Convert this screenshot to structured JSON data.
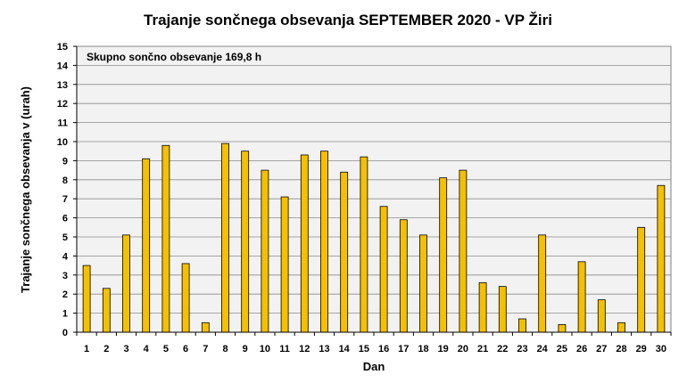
{
  "chart_data": {
    "type": "bar",
    "title": "Trajanje  sončnega  obsevanja  SEPTEMBER  2020 - VP Žiri",
    "xlabel": "Dan",
    "ylabel": "Trajanje  sončnega obsevanja  v (urah)",
    "annotation": "Skupno sončno obsevanje 169,8 h",
    "categories": [
      "1",
      "2",
      "3",
      "4",
      "5",
      "6",
      "7",
      "8",
      "9",
      "10",
      "11",
      "12",
      "13",
      "14",
      "15",
      "16",
      "17",
      "18",
      "19",
      "20",
      "21",
      "22",
      "23",
      "24",
      "25",
      "26",
      "27",
      "28",
      "29",
      "30"
    ],
    "values": [
      3.5,
      2.3,
      5.1,
      9.1,
      9.8,
      3.6,
      0.5,
      9.9,
      9.5,
      8.5,
      7.1,
      9.3,
      9.5,
      8.4,
      9.2,
      6.6,
      5.9,
      5.1,
      8.1,
      8.5,
      2.6,
      2.4,
      0.7,
      5.1,
      0.4,
      3.7,
      1.7,
      0.5,
      5.5,
      7.7
    ],
    "ylim": [
      0,
      15
    ],
    "yticks": [
      "0",
      "1",
      "2",
      "3",
      "4",
      "5",
      "6",
      "7",
      "8",
      "9",
      "10",
      "11",
      "12",
      "13",
      "14",
      "15"
    ],
    "grid": true,
    "bar_color": "#F5C000",
    "bar_stroke": "#000000",
    "plot_background": "#F2F2F2"
  }
}
